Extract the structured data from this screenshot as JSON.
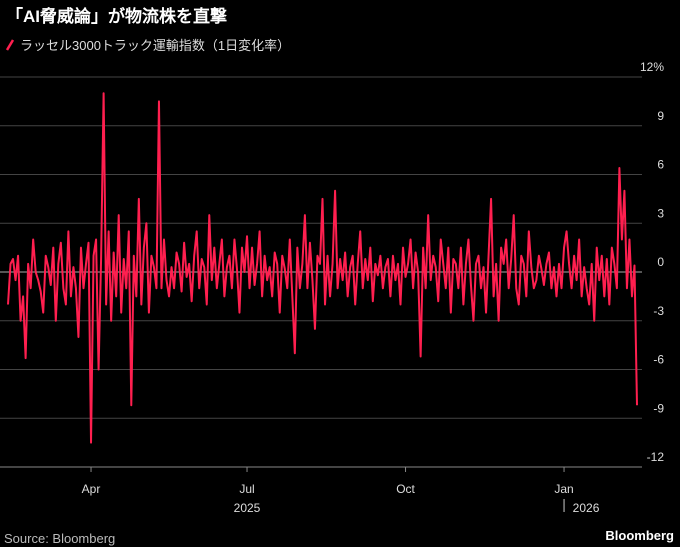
{
  "chart_data": {
    "type": "line",
    "title": "「AI脅威論」が物流株を直撃",
    "source": "Source: Bloomberg",
    "brand": "Bloomberg",
    "series": [
      {
        "name": "ラッセル3000トラック運輸指数（1日変化率）",
        "color": "#ff1f4f",
        "values": [
          -2,
          0.5,
          0.8,
          -0.5,
          1,
          -3,
          -1.5,
          -5.3,
          0.5,
          -1,
          2,
          0,
          -0.5,
          -1.2,
          -2.5,
          1,
          0.3,
          -0.8,
          1.5,
          -3,
          0.5,
          1.8,
          -1,
          -2,
          2.5,
          -1.5,
          0.3,
          -1,
          -4,
          1.5,
          -1,
          0.5,
          1.8,
          -10.5,
          1,
          2,
          -6,
          0.8,
          11,
          -2,
          2.5,
          -3,
          1.2,
          -1.5,
          3.5,
          -2.5,
          0.8,
          -1,
          2.5,
          -8.2,
          1,
          -1.5,
          4.5,
          -2,
          1.5,
          3,
          -2.5,
          1,
          0.3,
          -1,
          10.5,
          -1,
          2,
          -0.5,
          -1.5,
          0.3,
          -1,
          1.2,
          0.5,
          -1.2,
          1.8,
          -0.3,
          0.5,
          -1.8,
          1,
          2.5,
          -1,
          0.8,
          0.3,
          -2,
          3.5,
          -0.5,
          1.5,
          -1,
          0.5,
          2,
          -1.5,
          0.3,
          1,
          -1,
          2,
          0.2,
          -2.5,
          1.5,
          0,
          2.2,
          -1,
          1.5,
          -0.8,
          0.5,
          2.5,
          -1.5,
          1,
          -0.5,
          0.3,
          -1.5,
          1.2,
          0.5,
          -2.5,
          1,
          0.2,
          -1,
          2,
          -1.5,
          -5,
          1.5,
          -1,
          0.5,
          3.5,
          -1,
          1.8,
          -0.5,
          -3.5,
          1,
          0.5,
          4.5,
          -2,
          1,
          -1.5,
          0.5,
          5,
          -1,
          0.8,
          -0.5,
          1.2,
          -1.5,
          0.3,
          1,
          -2,
          0.5,
          2.5,
          -1,
          0.8,
          -0.5,
          1.5,
          -1.8,
          0.5,
          -0.2,
          1,
          -1,
          0.3,
          0.8,
          -1.5,
          1,
          -0.5,
          0.5,
          -2,
          1.5,
          -0.3,
          0.5,
          2,
          -1,
          1.2,
          0,
          -5.2,
          1.5,
          -1,
          3.5,
          -0.5,
          1,
          0.3,
          -1.8,
          2,
          0.5,
          -1,
          1.5,
          -2.5,
          0.8,
          0.5,
          -1,
          1.5,
          -2,
          0.5,
          2,
          -0.8,
          -3,
          0.5,
          1,
          -1,
          0.3,
          -2.5,
          1,
          4.5,
          -1.5,
          0.5,
          -3,
          1.5,
          0.5,
          2,
          -1,
          0.8,
          3.5,
          -1,
          -2,
          1,
          0.5,
          -1.5,
          2.5,
          0.3,
          -1,
          -0.5,
          1,
          0.2,
          -0.8,
          0.5,
          1.2,
          -1,
          0.3,
          -1.5,
          0.5,
          -1,
          1.5,
          2.5,
          0.5,
          -1,
          1,
          -0.5,
          2,
          -1.5,
          0.3,
          -1,
          -2,
          0.5,
          -3,
          1.5,
          -0.5,
          1,
          -1.5,
          0.8,
          -2,
          1.5,
          0.5,
          -1,
          6.4,
          2,
          5,
          -1,
          2,
          -1.5,
          0.4,
          -8.2
        ]
      }
    ],
    "xlim": [
      0,
      250
    ],
    "xticks": [
      {
        "value": 33,
        "label": "Apr"
      },
      {
        "value": 95,
        "label": "Jul"
      },
      {
        "value": 158,
        "label": "Oct"
      },
      {
        "value": 221,
        "label": "Jan"
      }
    ],
    "year_labels": [
      {
        "value": 95,
        "label": "2025"
      },
      {
        "value": 221,
        "label": "2026"
      }
    ],
    "ylim": [
      -12,
      12
    ],
    "yticks": [
      {
        "value": 12,
        "label": "12%"
      },
      9,
      6,
      3,
      0,
      -3,
      -6,
      -9,
      -12
    ],
    "grid": true
  }
}
